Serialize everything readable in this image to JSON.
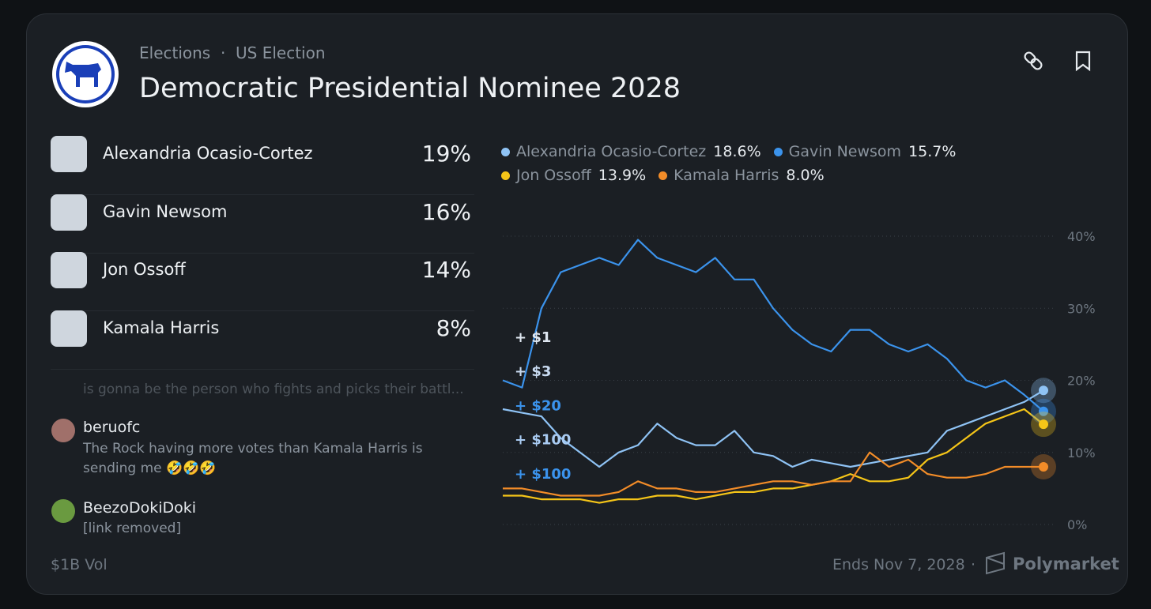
{
  "header": {
    "breadcrumb": [
      "Elections",
      "US Election"
    ],
    "title": "Democratic Presidential Nominee 2028"
  },
  "outcomes": [
    {
      "name": "Alexandria Ocasio-Cortez",
      "chance": "19%"
    },
    {
      "name": "Gavin Newsom",
      "chance": "16%"
    },
    {
      "name": "Jon Ossoff",
      "chance": "14%"
    },
    {
      "name": "Kamala Harris",
      "chance": "8%"
    }
  ],
  "comments": [
    {
      "text": "is gonna be the person who fights and picks their battl..."
    },
    {
      "user": "beruofc",
      "text": "The Rock having more votes than Kamala Harris is sending me 🤣🤣🤣"
    },
    {
      "user": "BeezoDokiDoki",
      "text": "[link removed]"
    }
  ],
  "footer": {
    "volume": "$1B Vol",
    "ends": "Ends Nov 7, 2028",
    "brand": "Polymarket"
  },
  "chart_data": {
    "type": "line",
    "series": [
      {
        "name": "Alexandria Ocasio-Cortez",
        "color": "#8fc3f5",
        "latest": {
          "value": 18.6,
          "label": "18.6%"
        },
        "values": [
          16,
          15.5,
          15,
          12,
          10,
          8,
          10,
          11,
          14,
          12,
          11,
          11,
          13,
          10,
          9.5,
          8,
          9,
          8.5,
          8,
          8.5,
          9,
          9.5,
          10,
          13,
          14,
          15,
          16,
          17,
          18.6
        ]
      },
      {
        "name": "Gavin Newsom",
        "color": "#3b93ec",
        "latest": {
          "value": 15.7,
          "label": "15.7%"
        },
        "values": [
          20,
          19,
          30,
          35,
          36,
          37,
          36,
          39.5,
          37,
          36,
          35,
          37,
          34,
          34,
          30,
          27,
          25,
          24,
          27,
          27,
          25,
          24,
          25,
          23,
          20,
          19,
          20,
          18,
          15.7
        ]
      },
      {
        "name": "Jon Ossoff",
        "color": "#f5c518",
        "latest": {
          "value": 13.9,
          "label": "13.9%"
        },
        "values": [
          4,
          4,
          3.5,
          3.5,
          3.5,
          3,
          3.5,
          3.5,
          4,
          4,
          3.5,
          4,
          4.5,
          4.5,
          5,
          5,
          5.5,
          6,
          7,
          6,
          6,
          6.5,
          9,
          10,
          12,
          14,
          15,
          16,
          13.9
        ]
      },
      {
        "name": "Kamala Harris",
        "color": "#f28c28",
        "latest": {
          "value": 8.0,
          "label": "8.0%"
        },
        "values": [
          5,
          5,
          4.5,
          4,
          4,
          4,
          4.5,
          6,
          5,
          5,
          4.5,
          4.5,
          5,
          5.5,
          6,
          6,
          5.5,
          6,
          6,
          10,
          8,
          9,
          7,
          6.5,
          6.5,
          7,
          8,
          8,
          8
        ]
      }
    ],
    "ylim": [
      0,
      40
    ],
    "yticks": [
      {
        "value": 0,
        "label": "0%"
      },
      {
        "value": 10,
        "label": "10%"
      },
      {
        "value": 20,
        "label": "20%"
      },
      {
        "value": 30,
        "label": "30%"
      },
      {
        "value": 40,
        "label": "40%"
      }
    ],
    "grid": true,
    "annotations": [
      {
        "text": "+ $1",
        "color": "#dfe7f1"
      },
      {
        "text": "+ $3",
        "color": "#c8daf0"
      },
      {
        "text": "+ $20",
        "color": "#3b93ec"
      },
      {
        "text": "+ $100",
        "color": "#a9cbf2"
      },
      {
        "text": "+ $100",
        "color": "#3b93ec"
      }
    ]
  }
}
